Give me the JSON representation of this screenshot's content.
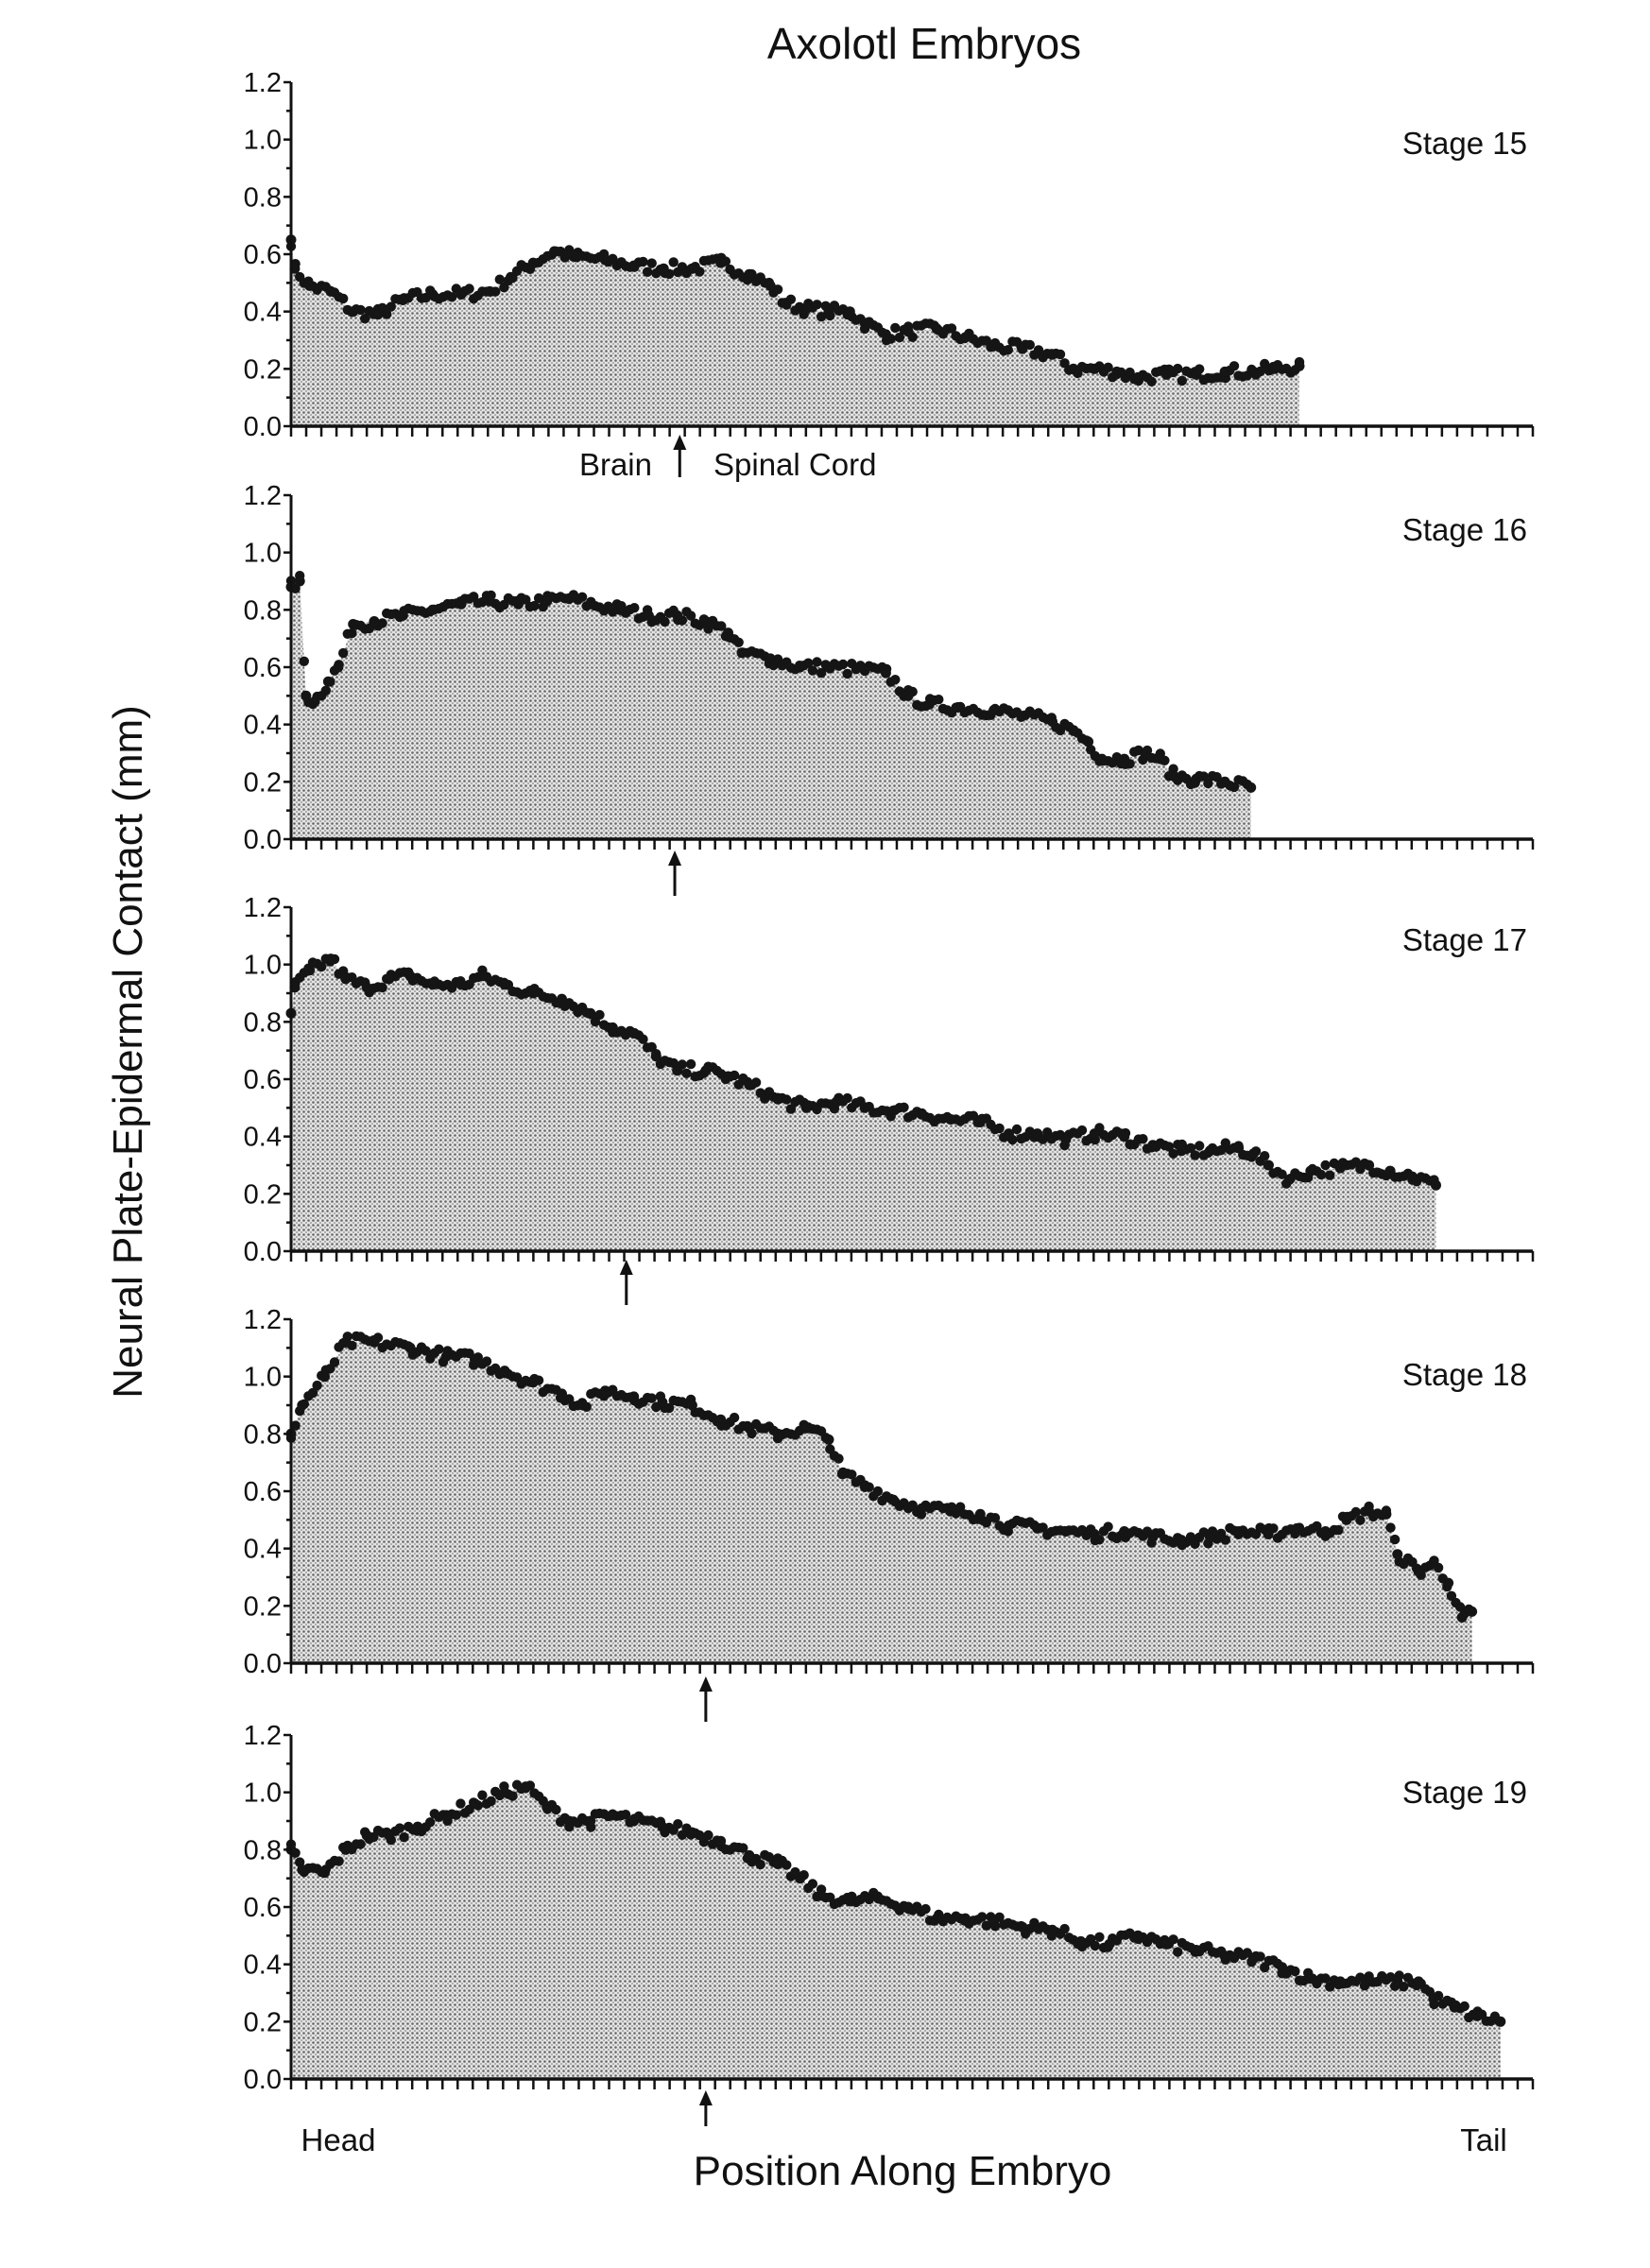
{
  "chart_data": {
    "type": "area",
    "title": "Axolotl Embryos",
    "xlabel": "Position Along Embryo",
    "ylabel": "Neural Plate-Epidermal Contact (mm)",
    "x_end_labels": {
      "left": "Head",
      "right": "Tail"
    },
    "xlim": [
      0,
      100
    ],
    "ylim": [
      0,
      1.2
    ],
    "yticks": [
      "0.0",
      "0.2",
      "0.4",
      "0.6",
      "0.8",
      "1.0",
      "1.2"
    ],
    "grid": false,
    "annotation": {
      "left": "Brain",
      "right": "Spinal Cord"
    },
    "panels": [
      {
        "name": "Stage 15",
        "brain_spinal_boundary": 31.3,
        "points": [
          [
            0,
            0.65
          ],
          [
            0.3,
            0.55
          ],
          [
            1.5,
            0.49
          ],
          [
            3.2,
            0.47
          ],
          [
            5,
            0.4
          ],
          [
            7,
            0.39
          ],
          [
            9,
            0.44
          ],
          [
            11.4,
            0.46
          ],
          [
            13.7,
            0.46
          ],
          [
            16,
            0.47
          ],
          [
            17.7,
            0.52
          ],
          [
            19.5,
            0.57
          ],
          [
            21.2,
            0.61
          ],
          [
            23,
            0.59
          ],
          [
            25.3,
            0.58
          ],
          [
            27.6,
            0.56
          ],
          [
            30,
            0.55
          ],
          [
            32.3,
            0.55
          ],
          [
            34.6,
            0.57
          ],
          [
            36.9,
            0.53
          ],
          [
            38.6,
            0.49
          ],
          [
            39.8,
            0.43
          ],
          [
            41.5,
            0.41
          ],
          [
            43.3,
            0.4
          ],
          [
            45,
            0.4
          ],
          [
            46.2,
            0.36
          ],
          [
            47.9,
            0.32
          ],
          [
            49.7,
            0.33
          ],
          [
            52,
            0.34
          ],
          [
            54.3,
            0.31
          ],
          [
            56.6,
            0.28
          ],
          [
            58.9,
            0.27
          ],
          [
            61.3,
            0.25
          ],
          [
            63,
            0.2
          ],
          [
            64.7,
            0.2
          ],
          [
            66.5,
            0.19
          ],
          [
            68.2,
            0.17
          ],
          [
            70.5,
            0.18
          ],
          [
            72.9,
            0.18
          ],
          [
            75.2,
            0.19
          ],
          [
            77.5,
            0.19
          ],
          [
            79.2,
            0.2
          ],
          [
            81.2,
            0.21
          ]
        ]
      },
      {
        "name": "Stage 16",
        "brain_spinal_boundary": 30.9,
        "points": [
          [
            0,
            0.88
          ],
          [
            0.7,
            0.9
          ],
          [
            1.2,
            0.5
          ],
          [
            1.9,
            0.48
          ],
          [
            3,
            0.55
          ],
          [
            3.8,
            0.6
          ],
          [
            5,
            0.75
          ],
          [
            6.7,
            0.76
          ],
          [
            9,
            0.78
          ],
          [
            11.4,
            0.8
          ],
          [
            13.7,
            0.82
          ],
          [
            16,
            0.83
          ],
          [
            18.3,
            0.82
          ],
          [
            20.6,
            0.83
          ],
          [
            22.4,
            0.84
          ],
          [
            24.1,
            0.82
          ],
          [
            26.5,
            0.8
          ],
          [
            28.8,
            0.78
          ],
          [
            31.1,
            0.78
          ],
          [
            33.4,
            0.76
          ],
          [
            35.2,
            0.72
          ],
          [
            36.3,
            0.65
          ],
          [
            38.6,
            0.63
          ],
          [
            41,
            0.6
          ],
          [
            43.3,
            0.6
          ],
          [
            46.2,
            0.59
          ],
          [
            47.9,
            0.58
          ],
          [
            49.7,
            0.5
          ],
          [
            51.4,
            0.47
          ],
          [
            53.7,
            0.46
          ],
          [
            56.6,
            0.45
          ],
          [
            58.9,
            0.43
          ],
          [
            61.3,
            0.41
          ],
          [
            63,
            0.38
          ],
          [
            64.2,
            0.34
          ],
          [
            65.3,
            0.28
          ],
          [
            67.1,
            0.28
          ],
          [
            68.8,
            0.3
          ],
          [
            70,
            0.28
          ],
          [
            71.1,
            0.22
          ],
          [
            72.9,
            0.21
          ],
          [
            75.2,
            0.2
          ],
          [
            77.3,
            0.18
          ]
        ]
      },
      {
        "name": "Stage 17",
        "brain_spinal_boundary": 27.0,
        "points": [
          [
            0,
            0.83
          ],
          [
            0.3,
            0.92
          ],
          [
            1.5,
            0.98
          ],
          [
            3.2,
            1.02
          ],
          [
            4.4,
            0.95
          ],
          [
            6.1,
            0.92
          ],
          [
            7.9,
            0.95
          ],
          [
            9.6,
            0.96
          ],
          [
            11.4,
            0.93
          ],
          [
            13.7,
            0.93
          ],
          [
            15.4,
            0.96
          ],
          [
            17.2,
            0.93
          ],
          [
            19.5,
            0.9
          ],
          [
            21.8,
            0.88
          ],
          [
            24.1,
            0.83
          ],
          [
            25.9,
            0.78
          ],
          [
            27.6,
            0.76
          ],
          [
            29.4,
            0.68
          ],
          [
            31.1,
            0.63
          ],
          [
            33.4,
            0.63
          ],
          [
            35.2,
            0.61
          ],
          [
            36.9,
            0.58
          ],
          [
            39.2,
            0.53
          ],
          [
            41.5,
            0.5
          ],
          [
            43.9,
            0.52
          ],
          [
            46.2,
            0.5
          ],
          [
            48.5,
            0.49
          ],
          [
            50.8,
            0.48
          ],
          [
            53.1,
            0.46
          ],
          [
            55.5,
            0.45
          ],
          [
            57.8,
            0.41
          ],
          [
            60.1,
            0.41
          ],
          [
            62.4,
            0.39
          ],
          [
            64.7,
            0.41
          ],
          [
            67.1,
            0.4
          ],
          [
            69.4,
            0.37
          ],
          [
            71.7,
            0.35
          ],
          [
            74,
            0.35
          ],
          [
            76.3,
            0.36
          ],
          [
            77.5,
            0.34
          ],
          [
            78.7,
            0.3
          ],
          [
            80.4,
            0.25
          ],
          [
            82.1,
            0.28
          ],
          [
            84.5,
            0.29
          ],
          [
            86.8,
            0.3
          ],
          [
            88.5,
            0.28
          ],
          [
            90.3,
            0.26
          ],
          [
            92.2,
            0.23
          ]
        ]
      },
      {
        "name": "Stage 18",
        "brain_spinal_boundary": 33.4,
        "points": [
          [
            0,
            0.8
          ],
          [
            0.9,
            0.9
          ],
          [
            2.7,
            1.0
          ],
          [
            4.4,
            1.12
          ],
          [
            6.7,
            1.12
          ],
          [
            9.6,
            1.1
          ],
          [
            12.5,
            1.07
          ],
          [
            14.8,
            1.06
          ],
          [
            17.2,
            1.02
          ],
          [
            19.5,
            0.98
          ],
          [
            21.8,
            0.94
          ],
          [
            23.5,
            0.9
          ],
          [
            25.3,
            0.95
          ],
          [
            27.6,
            0.93
          ],
          [
            29.9,
            0.91
          ],
          [
            32.3,
            0.9
          ],
          [
            34.6,
            0.85
          ],
          [
            36.9,
            0.82
          ],
          [
            39.2,
            0.8
          ],
          [
            41.5,
            0.82
          ],
          [
            43.3,
            0.78
          ],
          [
            44.4,
            0.66
          ],
          [
            46.2,
            0.62
          ],
          [
            48.5,
            0.57
          ],
          [
            50.8,
            0.54
          ],
          [
            53.1,
            0.53
          ],
          [
            55.5,
            0.52
          ],
          [
            57.8,
            0.48
          ],
          [
            60.1,
            0.47
          ],
          [
            62.4,
            0.46
          ],
          [
            64.7,
            0.45
          ],
          [
            67.1,
            0.46
          ],
          [
            69.4,
            0.44
          ],
          [
            71.7,
            0.43
          ],
          [
            74,
            0.44
          ],
          [
            76.3,
            0.46
          ],
          [
            78.7,
            0.45
          ],
          [
            81,
            0.47
          ],
          [
            83.3,
            0.46
          ],
          [
            85,
            0.5
          ],
          [
            86.8,
            0.53
          ],
          [
            88.2,
            0.52
          ],
          [
            89.1,
            0.38
          ],
          [
            90.8,
            0.32
          ],
          [
            92,
            0.35
          ],
          [
            93.2,
            0.28
          ],
          [
            94.3,
            0.16
          ],
          [
            95.1,
            0.18
          ]
        ]
      },
      {
        "name": "Stage 19",
        "brain_spinal_boundary": 33.4,
        "points": [
          [
            0,
            0.8
          ],
          [
            0.9,
            0.73
          ],
          [
            2.7,
            0.72
          ],
          [
            4.4,
            0.8
          ],
          [
            6.1,
            0.85
          ],
          [
            7.9,
            0.85
          ],
          [
            10.2,
            0.88
          ],
          [
            12.5,
            0.92
          ],
          [
            14.8,
            0.96
          ],
          [
            17.2,
            1.0
          ],
          [
            18.9,
            1.02
          ],
          [
            20.6,
            0.95
          ],
          [
            22.4,
            0.9
          ],
          [
            24.1,
            0.9
          ],
          [
            25.9,
            0.92
          ],
          [
            27.6,
            0.9
          ],
          [
            29.9,
            0.88
          ],
          [
            32.3,
            0.86
          ],
          [
            34.6,
            0.83
          ],
          [
            36.9,
            0.78
          ],
          [
            39.2,
            0.75
          ],
          [
            41,
            0.7
          ],
          [
            42.7,
            0.64
          ],
          [
            45,
            0.62
          ],
          [
            47.3,
            0.63
          ],
          [
            49.7,
            0.6
          ],
          [
            52,
            0.56
          ],
          [
            54.3,
            0.56
          ],
          [
            56.6,
            0.55
          ],
          [
            58.9,
            0.53
          ],
          [
            61.3,
            0.52
          ],
          [
            63.6,
            0.48
          ],
          [
            65.9,
            0.47
          ],
          [
            68.2,
            0.5
          ],
          [
            70.5,
            0.47
          ],
          [
            72.9,
            0.45
          ],
          [
            75.2,
            0.43
          ],
          [
            77.5,
            0.42
          ],
          [
            79.8,
            0.39
          ],
          [
            82.1,
            0.35
          ],
          [
            84.5,
            0.34
          ],
          [
            86.8,
            0.34
          ],
          [
            89.1,
            0.34
          ],
          [
            90.8,
            0.34
          ],
          [
            92,
            0.28
          ],
          [
            93.7,
            0.25
          ],
          [
            95.5,
            0.22
          ],
          [
            97.4,
            0.2
          ]
        ]
      }
    ],
    "colors": {
      "fill": "#bdbdbd",
      "dots": "#151515",
      "axis": "#111111"
    }
  }
}
